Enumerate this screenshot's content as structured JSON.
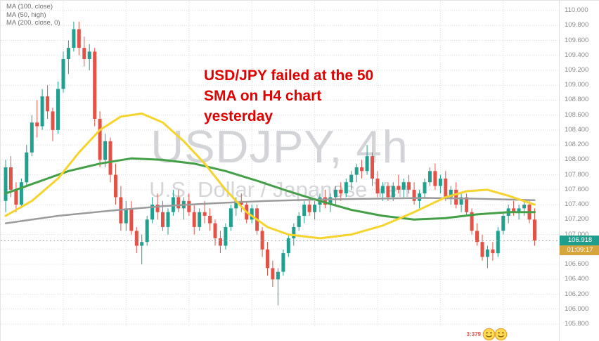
{
  "legend": {
    "items": [
      "MA (100, close)",
      "MA (50, high)",
      "MA (200, close, 0)"
    ]
  },
  "watermark": {
    "symbol": "USDJPY, 4h",
    "name": "U.S. Dollar / Japanese Yen"
  },
  "annotation": {
    "lines": [
      "USD/JPY failed at the 50",
      "SMA on H4 chart",
      "yesterday"
    ],
    "color": "#e00000"
  },
  "price_axis": {
    "labels": [
      "110.000",
      "109.800",
      "109.600",
      "109.400",
      "109.200",
      "109.000",
      "108.800",
      "108.600",
      "108.400",
      "108.200",
      "108.000",
      "107.800",
      "107.600",
      "107.400",
      "107.200",
      "107.000",
      "106.800",
      "106.600",
      "106.400",
      "106.200",
      "106.000",
      "105.800"
    ],
    "last_price": "106.918",
    "last_price_bg": "#1f9e8e",
    "countdown": "01:09:17",
    "countdown_bg": "#d7a53d"
  },
  "footer": {
    "reactions_text": "3:379"
  },
  "chart_data": {
    "type": "candlestick",
    "symbol": "USDJPY",
    "timeframe": "4h",
    "title": "USDJPY, 4h — U.S. Dollar / Japanese Yen",
    "ylim": [
      105.8,
      110.0
    ],
    "y_step": 0.2,
    "grid": true,
    "legend_position": "top-left",
    "up_color": "#21a08f",
    "down_color": "#e25247",
    "last_price": 106.918,
    "candles": [
      [
        107.45,
        108.0,
        107.3,
        107.9
      ],
      [
        107.9,
        108.05,
        107.5,
        107.6
      ],
      [
        107.6,
        107.7,
        107.3,
        107.4
      ],
      [
        107.4,
        107.75,
        107.35,
        107.7
      ],
      [
        107.7,
        108.2,
        107.65,
        108.1
      ],
      [
        108.1,
        108.6,
        108.05,
        108.5
      ],
      [
        108.5,
        108.8,
        108.3,
        108.45
      ],
      [
        108.45,
        108.95,
        108.4,
        108.85
      ],
      [
        108.85,
        109.0,
        108.55,
        108.65
      ],
      [
        108.65,
        108.7,
        108.25,
        108.4
      ],
      [
        108.4,
        109.05,
        108.35,
        108.95
      ],
      [
        108.95,
        109.45,
        108.9,
        109.35
      ],
      [
        109.35,
        109.6,
        109.15,
        109.5
      ],
      [
        109.5,
        109.85,
        109.45,
        109.75
      ],
      [
        109.75,
        109.85,
        109.4,
        109.5
      ],
      [
        109.5,
        109.65,
        109.25,
        109.35
      ],
      [
        109.35,
        109.55,
        109.2,
        109.45
      ],
      [
        109.45,
        109.5,
        108.45,
        108.55
      ],
      [
        108.55,
        108.65,
        107.9,
        108.0
      ],
      [
        108.0,
        108.35,
        107.9,
        108.25
      ],
      [
        108.25,
        108.3,
        107.7,
        107.8
      ],
      [
        107.8,
        107.95,
        107.4,
        107.5
      ],
      [
        107.5,
        107.65,
        107.05,
        107.15
      ],
      [
        107.15,
        107.45,
        107.05,
        107.35
      ],
      [
        107.35,
        107.45,
        107.0,
        107.05
      ],
      [
        107.05,
        107.1,
        106.75,
        106.85
      ],
      [
        106.85,
        107.0,
        106.6,
        106.9
      ],
      [
        106.9,
        107.25,
        106.85,
        107.2
      ],
      [
        107.2,
        107.5,
        107.15,
        107.4
      ],
      [
        107.4,
        107.55,
        107.2,
        107.3
      ],
      [
        107.3,
        107.45,
        107.05,
        107.1
      ],
      [
        107.1,
        107.35,
        107.0,
        107.3
      ],
      [
        107.3,
        107.6,
        107.25,
        107.5
      ],
      [
        107.5,
        107.6,
        107.3,
        107.35
      ],
      [
        107.35,
        107.5,
        107.2,
        107.45
      ],
      [
        107.45,
        107.55,
        107.25,
        107.3
      ],
      [
        107.3,
        107.4,
        107.0,
        107.1
      ],
      [
        107.1,
        107.35,
        107.05,
        107.3
      ],
      [
        107.3,
        107.45,
        107.15,
        107.25
      ],
      [
        107.25,
        107.35,
        107.05,
        107.15
      ],
      [
        107.15,
        107.2,
        106.85,
        106.95
      ],
      [
        106.95,
        107.05,
        106.75,
        106.85
      ],
      [
        106.85,
        107.15,
        106.8,
        107.1
      ],
      [
        107.1,
        107.4,
        107.05,
        107.35
      ],
      [
        107.35,
        107.5,
        107.25,
        107.45
      ],
      [
        107.45,
        107.55,
        107.3,
        107.4
      ],
      [
        107.4,
        107.45,
        107.15,
        107.2
      ],
      [
        107.2,
        107.4,
        107.15,
        107.35
      ],
      [
        107.35,
        107.4,
        107.0,
        107.05
      ],
      [
        107.05,
        107.1,
        106.7,
        106.8
      ],
      [
        106.8,
        106.9,
        106.45,
        106.55
      ],
      [
        106.55,
        106.65,
        106.3,
        106.4
      ],
      [
        106.4,
        106.55,
        106.05,
        106.5
      ],
      [
        106.5,
        106.8,
        106.45,
        106.75
      ],
      [
        106.75,
        107.0,
        106.7,
        106.95
      ],
      [
        106.95,
        107.15,
        106.85,
        107.1
      ],
      [
        107.1,
        107.3,
        107.05,
        107.25
      ],
      [
        107.25,
        107.45,
        107.15,
        107.4
      ],
      [
        107.4,
        107.5,
        107.25,
        107.3
      ],
      [
        107.3,
        107.45,
        107.2,
        107.4
      ],
      [
        107.4,
        107.55,
        107.3,
        107.5
      ],
      [
        107.5,
        107.6,
        107.35,
        107.4
      ],
      [
        107.4,
        107.55,
        107.3,
        107.5
      ],
      [
        107.5,
        107.65,
        107.4,
        107.6
      ],
      [
        107.6,
        107.7,
        107.45,
        107.55
      ],
      [
        107.55,
        107.75,
        107.5,
        107.7
      ],
      [
        107.7,
        107.85,
        107.6,
        107.8
      ],
      [
        107.8,
        107.95,
        107.7,
        107.9
      ],
      [
        107.9,
        108.0,
        107.75,
        107.85
      ],
      [
        107.85,
        108.2,
        107.8,
        108.05
      ],
      [
        108.05,
        108.1,
        107.65,
        107.75
      ],
      [
        107.75,
        107.85,
        107.5,
        107.55
      ],
      [
        107.55,
        107.7,
        107.45,
        107.65
      ],
      [
        107.65,
        107.7,
        107.45,
        107.5
      ],
      [
        107.5,
        107.7,
        107.45,
        107.65
      ],
      [
        107.65,
        107.8,
        107.55,
        107.6
      ],
      [
        107.6,
        107.75,
        107.5,
        107.7
      ],
      [
        107.7,
        107.8,
        107.55,
        107.6
      ],
      [
        107.6,
        107.7,
        107.4,
        107.45
      ],
      [
        107.45,
        107.6,
        107.35,
        107.55
      ],
      [
        107.55,
        107.75,
        107.5,
        107.7
      ],
      [
        107.7,
        107.9,
        107.65,
        107.85
      ],
      [
        107.85,
        107.95,
        107.6,
        107.65
      ],
      [
        107.65,
        107.8,
        107.55,
        107.75
      ],
      [
        107.75,
        107.85,
        107.45,
        107.5
      ],
      [
        107.5,
        107.65,
        107.4,
        107.6
      ],
      [
        107.6,
        107.7,
        107.35,
        107.4
      ],
      [
        107.4,
        107.55,
        107.3,
        107.5
      ],
      [
        107.5,
        107.55,
        107.25,
        107.3
      ],
      [
        107.3,
        107.35,
        107.0,
        107.05
      ],
      [
        107.05,
        107.15,
        106.85,
        106.9
      ],
      [
        106.9,
        107.0,
        106.65,
        106.7
      ],
      [
        106.7,
        106.85,
        106.55,
        106.8
      ],
      [
        106.8,
        106.9,
        106.65,
        106.75
      ],
      [
        106.75,
        107.1,
        106.7,
        107.05
      ],
      [
        107.05,
        107.3,
        107.0,
        107.25
      ],
      [
        107.25,
        107.4,
        107.15,
        107.35
      ],
      [
        107.35,
        107.45,
        107.25,
        107.3
      ],
      [
        107.3,
        107.4,
        107.2,
        107.35
      ],
      [
        107.35,
        107.45,
        107.25,
        107.4
      ],
      [
        107.4,
        107.45,
        107.15,
        107.2
      ],
      [
        107.2,
        107.35,
        106.85,
        106.92
      ]
    ],
    "moving_averages": [
      {
        "id": "ma-200-close-line",
        "name": "MA (200, close, 0)",
        "color": "#9b9b9b",
        "width": 2.5,
        "points": [
          [
            0,
            107.15
          ],
          [
            10,
            107.25
          ],
          [
            20,
            107.32
          ],
          [
            30,
            107.38
          ],
          [
            40,
            107.42
          ],
          [
            50,
            107.45
          ],
          [
            60,
            107.47
          ],
          [
            70,
            107.48
          ],
          [
            80,
            107.49
          ],
          [
            90,
            107.48
          ],
          [
            101,
            107.46
          ]
        ]
      },
      {
        "id": "ma-100-close-line",
        "name": "MA (100, close)",
        "color": "#43a047",
        "width": 3,
        "points": [
          [
            0,
            107.55
          ],
          [
            6,
            107.7
          ],
          [
            12,
            107.85
          ],
          [
            18,
            107.95
          ],
          [
            24,
            108.02
          ],
          [
            30,
            108.0
          ],
          [
            36,
            107.95
          ],
          [
            42,
            107.85
          ],
          [
            48,
            107.72
          ],
          [
            54,
            107.58
          ],
          [
            60,
            107.45
          ],
          [
            66,
            107.33
          ],
          [
            72,
            107.25
          ],
          [
            78,
            107.2
          ],
          [
            84,
            107.22
          ],
          [
            90,
            107.27
          ],
          [
            96,
            107.3
          ],
          [
            101,
            107.3
          ]
        ]
      },
      {
        "id": "ma-50-high-line",
        "name": "MA (50, high)",
        "color": "#f6d32d",
        "width": 3,
        "points": [
          [
            0,
            107.25
          ],
          [
            5,
            107.45
          ],
          [
            10,
            107.75
          ],
          [
            14,
            108.1
          ],
          [
            18,
            108.4
          ],
          [
            22,
            108.58
          ],
          [
            26,
            108.62
          ],
          [
            30,
            108.5
          ],
          [
            34,
            108.25
          ],
          [
            38,
            107.95
          ],
          [
            42,
            107.6
          ],
          [
            46,
            107.3
          ],
          [
            50,
            107.1
          ],
          [
            54,
            107.0
          ],
          [
            60,
            106.95
          ],
          [
            66,
            107.0
          ],
          [
            72,
            107.12
          ],
          [
            78,
            107.3
          ],
          [
            84,
            107.5
          ],
          [
            88,
            107.58
          ],
          [
            92,
            107.6
          ],
          [
            96,
            107.52
          ],
          [
            101,
            107.4
          ]
        ]
      }
    ]
  }
}
